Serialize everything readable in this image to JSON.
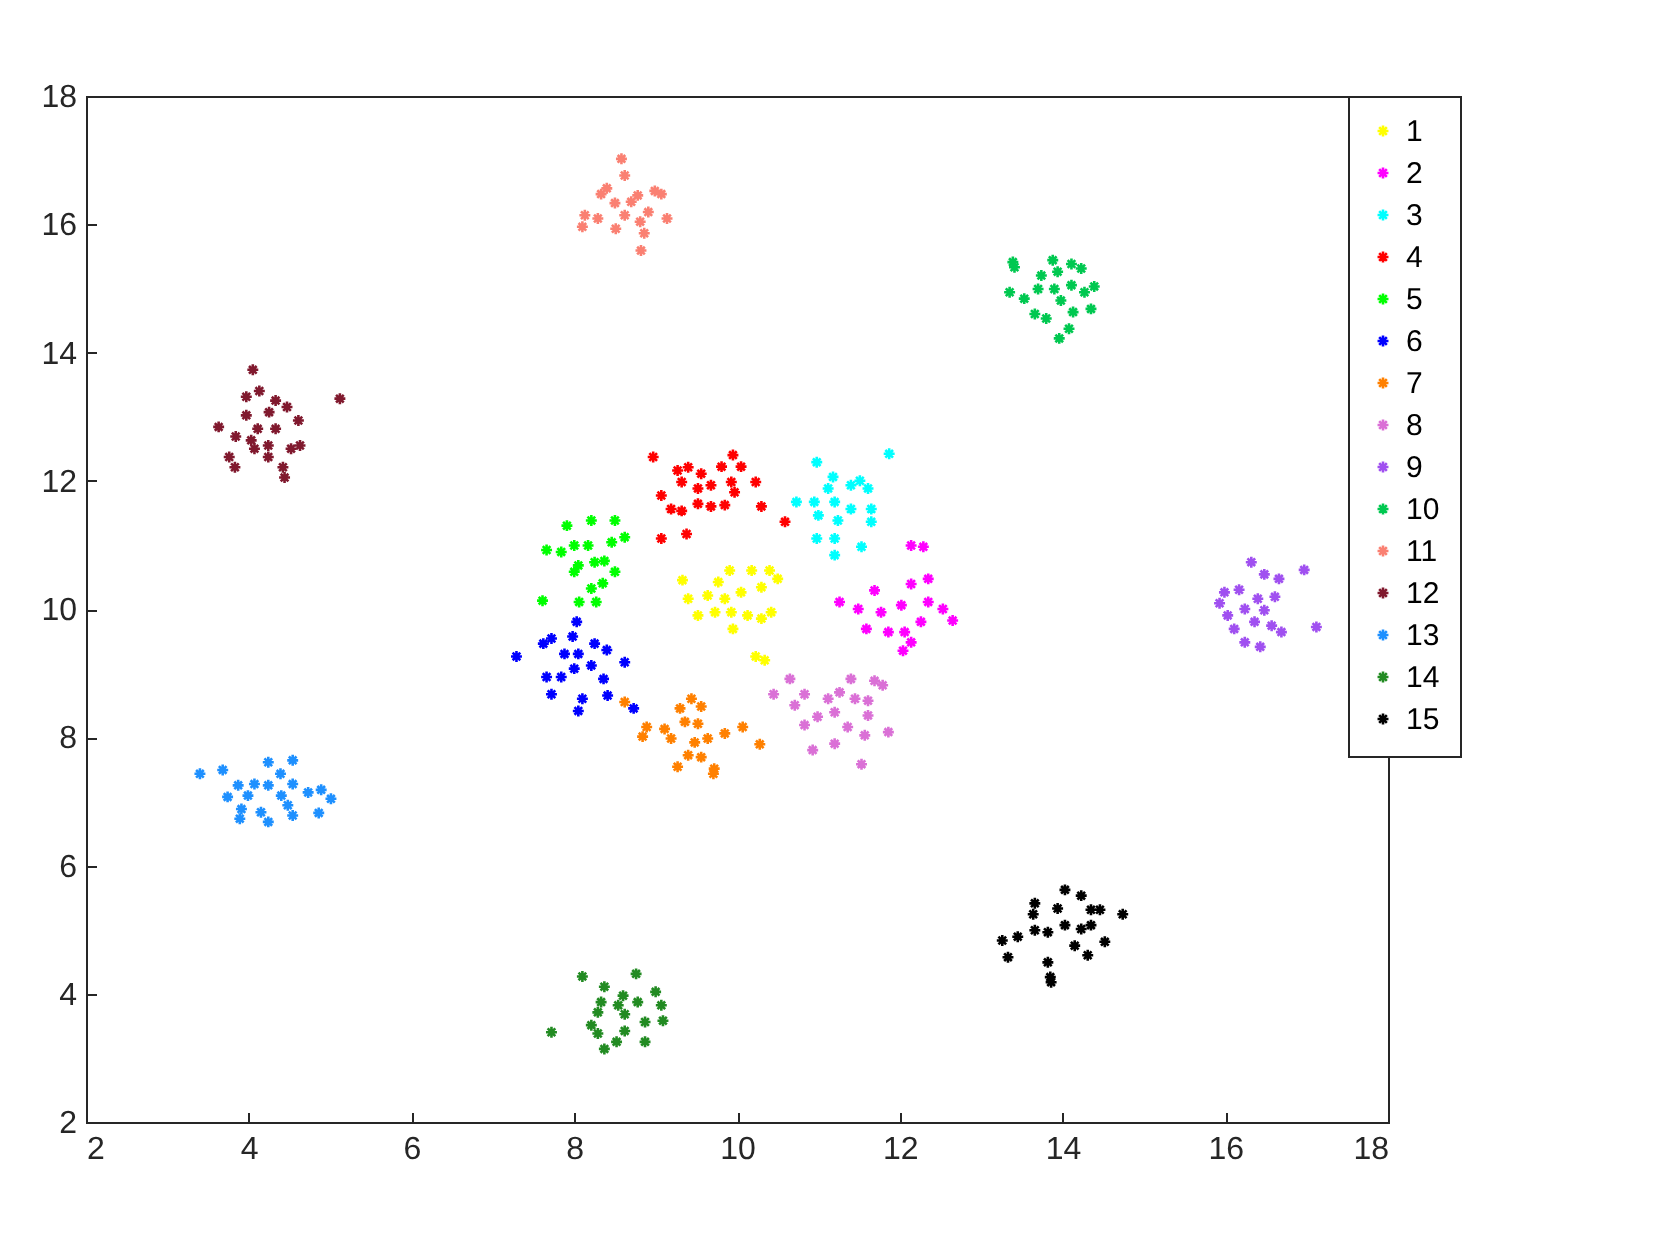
{
  "chart_data": {
    "type": "scatter",
    "xlim": [
      2,
      18
    ],
    "ylim": [
      2,
      18
    ],
    "xticks": [
      2,
      4,
      6,
      8,
      10,
      12,
      14,
      16,
      18
    ],
    "yticks": [
      2,
      4,
      6,
      8,
      10,
      12,
      14,
      16,
      18
    ],
    "grid": false,
    "legend": "top right",
    "marker": "cross",
    "series": [
      {
        "name": "1",
        "color": "#ffff00",
        "x": [
          9.33,
          9.91,
          10.18,
          10.4,
          10.5,
          9.77,
          10.05,
          10.3,
          9.4,
          9.52,
          9.73,
          9.93,
          10.13,
          10.3,
          10.42,
          9.95,
          10.23,
          10.34,
          9.64,
          9.85
        ],
        "values": [
          10.45,
          10.6,
          10.6,
          10.6,
          10.47,
          10.42,
          10.26,
          10.34,
          10.16,
          9.9,
          9.95,
          9.95,
          9.9,
          9.85,
          9.95,
          9.69,
          9.26,
          9.2,
          10.21,
          10.16
        ]
      },
      {
        "name": "2",
        "color": "#ff00ff",
        "x": [
          12.14,
          12.29,
          11.26,
          11.69,
          12.14,
          12.35,
          11.49,
          11.77,
          12.02,
          12.35,
          12.53,
          12.26,
          12.65,
          11.59,
          11.86,
          12.06,
          12.14,
          12.04
        ],
        "values": [
          10.99,
          10.97,
          10.11,
          10.29,
          10.39,
          10.47,
          10.0,
          9.95,
          10.06,
          10.11,
          10.0,
          9.8,
          9.82,
          9.69,
          9.64,
          9.64,
          9.48,
          9.35
        ]
      },
      {
        "name": "3",
        "color": "#00ffff",
        "x": [
          10.98,
          11.87,
          11.18,
          11.51,
          11.61,
          11.4,
          11.12,
          10.73,
          10.95,
          11.2,
          11.4,
          11.65,
          11.0,
          11.24,
          11.65,
          10.98,
          11.2,
          11.53,
          11.2
        ],
        "values": [
          12.29,
          12.42,
          12.06,
          12.0,
          11.88,
          11.93,
          11.88,
          11.67,
          11.67,
          11.67,
          11.56,
          11.56,
          11.46,
          11.38,
          11.36,
          11.1,
          11.1,
          10.97,
          10.84
        ]
      },
      {
        "name": "4",
        "color": "#ff0000",
        "x": [
          8.97,
          9.07,
          9.27,
          9.4,
          9.56,
          9.81,
          9.95,
          10.05,
          10.23,
          9.32,
          9.52,
          9.68,
          9.93,
          9.97,
          9.19,
          9.32,
          9.52,
          9.68,
          9.85,
          10.3,
          10.59,
          9.07,
          9.38
        ],
        "values": [
          12.37,
          11.77,
          12.16,
          12.21,
          12.11,
          12.22,
          12.4,
          12.22,
          11.98,
          11.98,
          11.88,
          11.93,
          11.98,
          11.82,
          11.56,
          11.53,
          11.64,
          11.6,
          11.62,
          11.6,
          11.36,
          11.1,
          11.17
        ]
      },
      {
        "name": "5",
        "color": "#00ff00",
        "x": [
          7.91,
          8.21,
          8.5,
          8.62,
          8.46,
          7.66,
          7.84,
          8.0,
          8.17,
          8.05,
          8.25,
          8.37,
          8.5,
          8.21,
          8.35,
          7.61,
          8.06,
          8.27,
          8.0
        ],
        "values": [
          11.3,
          11.38,
          11.38,
          11.12,
          11.04,
          10.92,
          10.89,
          10.99,
          10.99,
          10.68,
          10.73,
          10.75,
          10.58,
          10.32,
          10.4,
          10.13,
          10.11,
          10.11,
          10.58
        ]
      },
      {
        "name": "6",
        "color": "#0000ff",
        "x": [
          8.03,
          7.29,
          7.62,
          7.72,
          7.98,
          8.25,
          7.88,
          8.05,
          8.4,
          8.62,
          7.66,
          7.84,
          8.0,
          8.21,
          8.36,
          7.72,
          8.1,
          8.41,
          8.05,
          8.73
        ],
        "values": [
          9.8,
          9.26,
          9.46,
          9.54,
          9.57,
          9.46,
          9.3,
          9.3,
          9.36,
          9.17,
          8.94,
          8.94,
          9.07,
          9.12,
          8.91,
          8.67,
          8.6,
          8.65,
          8.41,
          8.45
        ]
      },
      {
        "name": "7",
        "color": "#ff8000",
        "x": [
          8.62,
          9.44,
          9.56,
          9.3,
          9.36,
          9.52,
          8.89,
          9.11,
          8.84,
          9.19,
          9.48,
          9.64,
          9.85,
          10.07,
          10.28,
          9.4,
          9.56,
          9.27,
          9.72,
          9.71
        ],
        "values": [
          8.55,
          8.6,
          8.48,
          8.45,
          8.24,
          8.21,
          8.16,
          8.13,
          8.01,
          7.98,
          7.92,
          7.98,
          8.06,
          8.16,
          7.89,
          7.72,
          7.69,
          7.54,
          7.51,
          7.43
        ]
      },
      {
        "name": "8",
        "color": "#da70d6",
        "x": [
          10.65,
          10.45,
          10.83,
          10.71,
          11.12,
          11.26,
          11.4,
          11.69,
          11.79,
          11.61,
          11.45,
          11.2,
          10.99,
          10.83,
          11.36,
          11.61,
          11.57,
          11.86,
          11.2,
          10.93,
          11.53
        ],
        "values": [
          8.91,
          8.67,
          8.67,
          8.5,
          8.6,
          8.7,
          8.91,
          8.88,
          8.81,
          8.57,
          8.6,
          8.39,
          8.32,
          8.19,
          8.16,
          8.34,
          8.03,
          8.08,
          7.9,
          7.8,
          7.58
        ]
      },
      {
        "name": "9",
        "color": "#a050f0",
        "x": [
          16.32,
          16.48,
          16.66,
          16.97,
          15.99,
          16.17,
          15.93,
          16.4,
          16.61,
          16.03,
          16.24,
          16.48,
          16.11,
          16.36,
          16.57,
          16.69,
          17.12,
          16.24,
          16.43
        ],
        "values": [
          10.73,
          10.54,
          10.47,
          10.61,
          10.26,
          10.3,
          10.09,
          10.16,
          10.19,
          9.9,
          10.0,
          9.98,
          9.69,
          9.8,
          9.74,
          9.64,
          9.72,
          9.48,
          9.41
        ]
      },
      {
        "name": "10",
        "color": "#00c850",
        "x": [
          13.39,
          13.41,
          13.88,
          14.11,
          14.23,
          13.74,
          13.94,
          13.35,
          13.53,
          13.7,
          13.9,
          14.11,
          14.39,
          14.27,
          13.66,
          13.8,
          13.98,
          14.13,
          14.35,
          14.08,
          13.96
        ],
        "values": [
          15.41,
          15.33,
          15.44,
          15.38,
          15.31,
          15.2,
          15.26,
          14.94,
          14.84,
          14.99,
          14.99,
          15.05,
          15.03,
          14.94,
          14.6,
          14.53,
          14.81,
          14.63,
          14.68,
          14.37,
          14.22
        ]
      },
      {
        "name": "11",
        "color": "#fa8072",
        "x": [
          8.58,
          8.62,
          8.4,
          8.33,
          8.78,
          8.99,
          9.07,
          8.5,
          8.7,
          8.13,
          8.29,
          8.62,
          8.91,
          9.14,
          8.1,
          8.51,
          8.81,
          8.86,
          8.82
        ],
        "values": [
          17.02,
          16.76,
          16.56,
          16.47,
          16.45,
          16.52,
          16.47,
          16.33,
          16.35,
          16.14,
          16.09,
          16.14,
          16.19,
          16.09,
          15.96,
          15.93,
          16.04,
          15.86,
          15.59
        ]
      },
      {
        "name": "12",
        "color": "#80192e",
        "x": [
          4.05,
          3.97,
          4.13,
          4.33,
          4.47,
          5.12,
          3.63,
          3.97,
          4.25,
          4.11,
          4.33,
          4.61,
          3.84,
          4.03,
          4.24,
          4.52,
          4.63,
          4.07,
          3.76,
          3.83,
          4.24,
          4.42,
          4.44
        ],
        "values": [
          13.73,
          13.31,
          13.4,
          13.25,
          13.15,
          13.28,
          12.84,
          13.02,
          13.07,
          12.81,
          12.81,
          12.94,
          12.69,
          12.63,
          12.55,
          12.5,
          12.55,
          12.5,
          12.37,
          12.21,
          12.37,
          12.21,
          12.05
        ]
      },
      {
        "name": "13",
        "color": "#1e90ff",
        "x": [
          3.4,
          3.68,
          4.24,
          4.54,
          4.39,
          3.87,
          4.07,
          4.24,
          4.54,
          3.74,
          3.99,
          4.4,
          4.73,
          4.89,
          5.01,
          3.91,
          4.15,
          4.48,
          3.89,
          4.24,
          4.54,
          4.86
        ],
        "values": [
          7.43,
          7.49,
          7.61,
          7.64,
          7.43,
          7.25,
          7.27,
          7.25,
          7.27,
          7.07,
          7.09,
          7.09,
          7.14,
          7.18,
          7.04,
          6.88,
          6.83,
          6.94,
          6.73,
          6.68,
          6.78,
          6.82
        ]
      },
      {
        "name": "14",
        "color": "#228b22",
        "x": [
          8.1,
          8.76,
          8.37,
          8.6,
          9.0,
          8.33,
          8.54,
          8.78,
          9.07,
          8.29,
          8.62,
          8.87,
          9.09,
          8.21,
          7.72,
          8.29,
          8.62,
          8.37,
          8.52,
          8.87
        ],
        "values": [
          4.27,
          4.31,
          4.11,
          3.97,
          4.03,
          3.87,
          3.82,
          3.87,
          3.82,
          3.71,
          3.68,
          3.56,
          3.58,
          3.51,
          3.4,
          3.38,
          3.42,
          3.14,
          3.25,
          3.25
        ]
      },
      {
        "name": "15",
        "color": "#000000",
        "x": [
          14.03,
          14.23,
          13.66,
          13.64,
          13.94,
          14.35,
          14.46,
          14.74,
          13.66,
          13.82,
          14.03,
          14.23,
          14.35,
          13.26,
          13.45,
          14.15,
          14.52,
          14.31,
          13.33,
          13.82,
          13.86,
          13.85
        ],
        "values": [
          5.62,
          5.53,
          5.41,
          5.24,
          5.33,
          5.31,
          5.31,
          5.24,
          4.99,
          4.96,
          5.07,
          5.01,
          5.07,
          4.83,
          4.89,
          4.75,
          4.81,
          4.6,
          4.57,
          4.49,
          4.18,
          4.26
        ]
      }
    ]
  }
}
